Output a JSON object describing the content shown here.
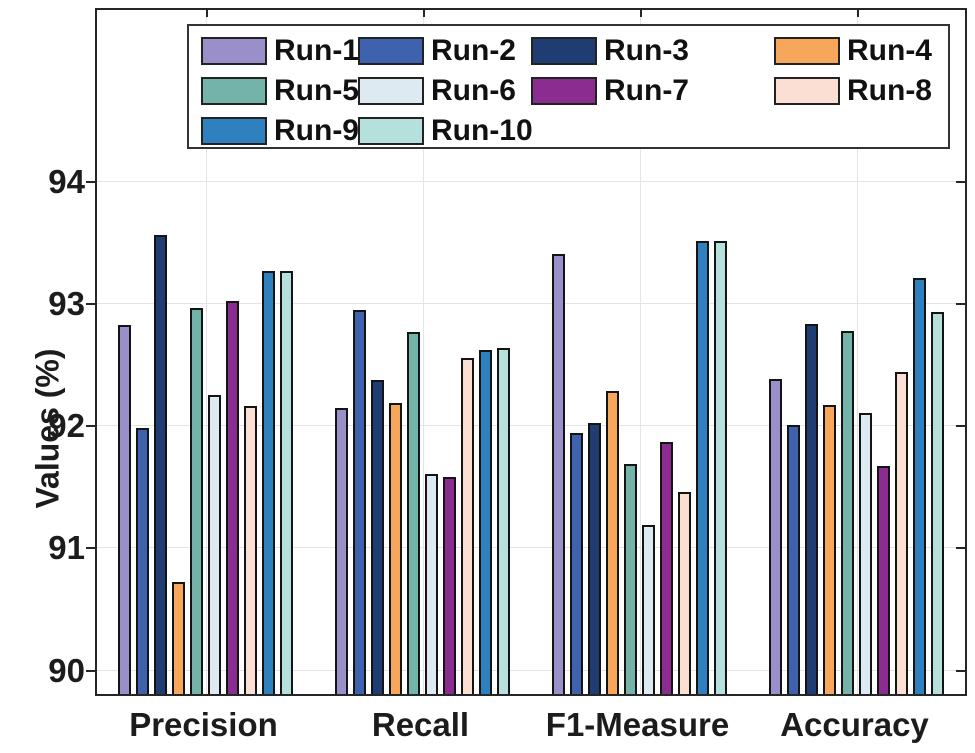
{
  "figure": {
    "background": "#ffffff",
    "axis_color": "#262626",
    "grid_color": "#e4e4e4",
    "bar_edge_color": "#141414"
  },
  "chart_data": {
    "type": "bar",
    "title": "",
    "xlabel": "",
    "ylabel": "Values (%)",
    "categories": [
      "Precision",
      "Recall",
      "F1-Measure",
      "Accuracy"
    ],
    "series": [
      {
        "name": "Run-1",
        "color": "#9A8FC8",
        "values": [
          92.82,
          92.14,
          93.4,
          92.38
        ]
      },
      {
        "name": "Run-2",
        "color": "#3E62AE",
        "values": [
          91.98,
          92.94,
          91.94,
          92.0
        ]
      },
      {
        "name": "Run-3",
        "color": "#1F3D72",
        "values": [
          93.56,
          92.37,
          92.02,
          92.83
        ]
      },
      {
        "name": "Run-4",
        "color": "#F6A75C",
        "values": [
          90.72,
          92.18,
          92.28,
          92.17
        ]
      },
      {
        "name": "Run-5",
        "color": "#74B3AA",
        "values": [
          92.96,
          92.76,
          91.68,
          92.77
        ]
      },
      {
        "name": "Run-6",
        "color": "#DEEAF2",
        "values": [
          92.25,
          91.6,
          91.18,
          92.1
        ]
      },
      {
        "name": "Run-7",
        "color": "#8A2C90",
        "values": [
          93.02,
          91.58,
          91.86,
          91.67
        ]
      },
      {
        "name": "Run-8",
        "color": "#FBDFD2",
        "values": [
          92.16,
          92.55,
          91.45,
          92.44
        ]
      },
      {
        "name": "Run-9",
        "color": "#2E80BE",
        "values": [
          93.26,
          92.62,
          93.51,
          93.21
        ]
      },
      {
        "name": "Run-10",
        "color": "#B6E0DC",
        "values": [
          93.26,
          92.63,
          93.51,
          92.93
        ]
      }
    ],
    "ylim": [
      89.8,
      95.4
    ],
    "yticks": [
      90,
      91,
      92,
      93,
      94
    ],
    "grid": true,
    "legend_position": "top-inside",
    "legend_columns": 4
  }
}
